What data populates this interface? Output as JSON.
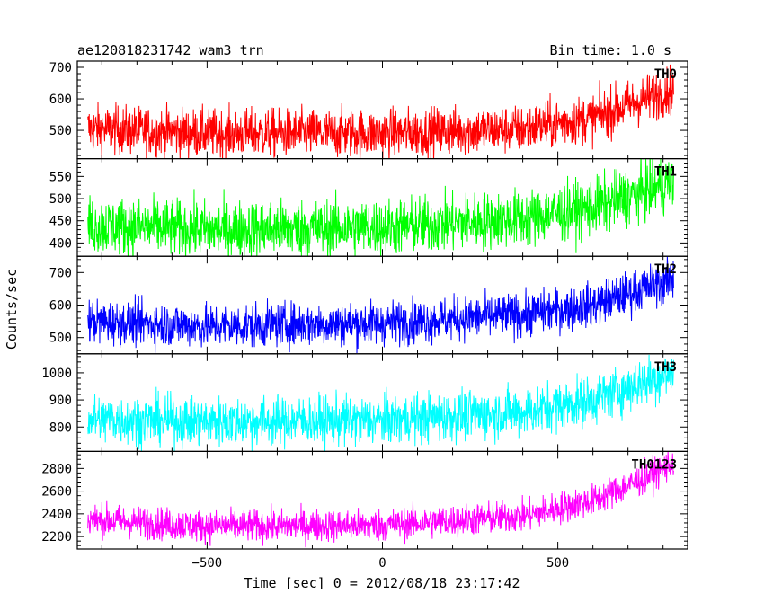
{
  "header": {
    "title": "ae120818231742_wam3_trn",
    "bin_time": "Bin time: 1.0 s"
  },
  "axes": {
    "xlabel": "Time [sec] 0 = 2012/08/18 23:17:42",
    "ylabel": "Counts/sec"
  },
  "chart_data": {
    "type": "line",
    "x_range": [
      -870,
      870
    ],
    "x_ticks": [
      -500,
      0,
      500
    ],
    "x_tick_labels": [
      "−500",
      "0",
      "500"
    ],
    "time_span": [
      -840,
      830
    ],
    "bin_time_s": 1.0,
    "grid": false,
    "panels": [
      {
        "name": "TH0",
        "color": "#ff0000",
        "ylim": [
          410,
          720
        ],
        "y_ticks": [
          500,
          600,
          700
        ],
        "trend_anchors": {
          "x": [
            -840,
            -500,
            0,
            400,
            600,
            700,
            800,
            830
          ],
          "y": [
            505,
            490,
            490,
            505,
            540,
            580,
            620,
            635
          ]
        },
        "noise_amplitude": 38
      },
      {
        "name": "TH1",
        "color": "#00ff00",
        "ylim": [
          370,
          590
        ],
        "y_ticks": [
          400,
          450,
          500,
          550
        ],
        "trend_anchors": {
          "x": [
            -840,
            -500,
            0,
            400,
            600,
            700,
            800,
            830
          ],
          "y": [
            440,
            430,
            435,
            455,
            480,
            505,
            530,
            540
          ]
        },
        "noise_amplitude": 32
      },
      {
        "name": "TH2",
        "color": "#0000ff",
        "ylim": [
          450,
          750
        ],
        "y_ticks": [
          500,
          600,
          700
        ],
        "trend_anchors": {
          "x": [
            -840,
            -500,
            0,
            400,
            600,
            700,
            800,
            830
          ],
          "y": [
            550,
            535,
            545,
            570,
            600,
            635,
            670,
            680
          ]
        },
        "noise_amplitude": 33
      },
      {
        "name": "TH3",
        "color": "#00ffff",
        "ylim": [
          710,
          1070
        ],
        "y_ticks": [
          800,
          900,
          1000
        ],
        "trend_anchors": {
          "x": [
            -840,
            -500,
            0,
            400,
            600,
            700,
            800,
            830
          ],
          "y": [
            830,
            820,
            825,
            855,
            900,
            945,
            990,
            1000
          ]
        },
        "noise_amplitude": 45
      },
      {
        "name": "TH0123",
        "color": "#ff00ff",
        "ylim": [
          2090,
          2950
        ],
        "y_ticks": [
          2200,
          2400,
          2600,
          2800
        ],
        "trend_anchors": {
          "x": [
            -840,
            -500,
            0,
            400,
            600,
            700,
            800,
            830
          ],
          "y": [
            2350,
            2290,
            2300,
            2380,
            2520,
            2650,
            2800,
            2860
          ]
        },
        "noise_amplitude": 70
      }
    ]
  }
}
